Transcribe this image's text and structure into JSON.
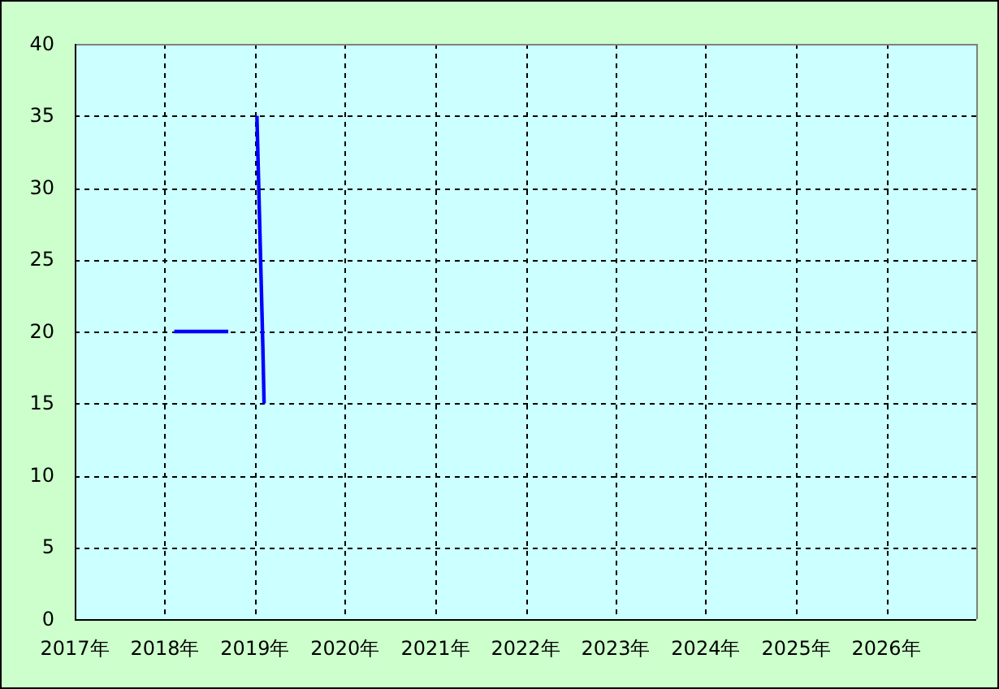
{
  "chart_data": {
    "type": "line",
    "x": [
      "2018-02-08",
      "2018-09-15",
      "2018-12-01",
      "2019-01-09",
      "2019-01-15",
      "2019-01-21",
      "2019-01-27",
      "2019-02-02",
      "2019-02-07"
    ],
    "series": [
      {
        "color": "#0000ff",
        "values": [
          20,
          20,
          null,
          35,
          31,
          27,
          23,
          19,
          15
        ]
      }
    ],
    "xlim": [
      "2017",
      "2027"
    ],
    "xticks": [
      {
        "value": "2017",
        "label": "2017年"
      },
      {
        "value": "2018",
        "label": "2018年"
      },
      {
        "value": "2019",
        "label": "2019年"
      },
      {
        "value": "2020",
        "label": "2020年"
      },
      {
        "value": "2021",
        "label": "2021年"
      },
      {
        "value": "2022",
        "label": "2022年"
      },
      {
        "value": "2023",
        "label": "2023年"
      },
      {
        "value": "2024",
        "label": "2024年"
      },
      {
        "value": "2025",
        "label": "2025年"
      },
      {
        "value": "2026",
        "label": "2026年"
      }
    ],
    "ylim": [
      0,
      40
    ],
    "yticks": [
      0,
      5,
      10,
      15,
      20,
      25,
      30,
      35,
      40
    ],
    "grid": true,
    "line_style": "solid"
  }
}
